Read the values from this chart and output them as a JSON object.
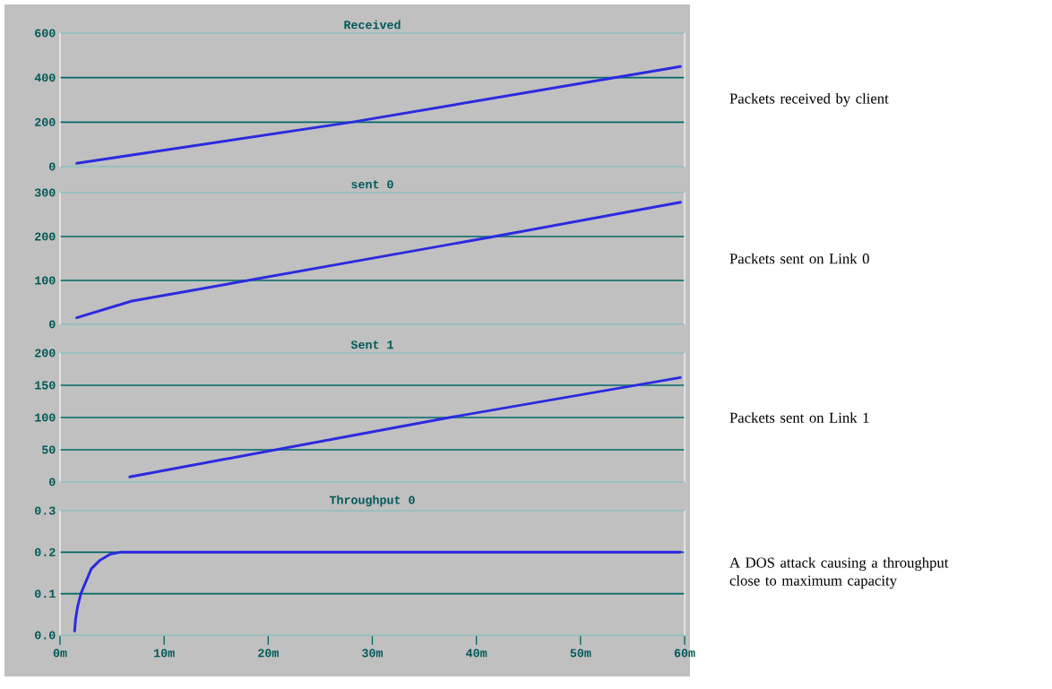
{
  "chart_data": [
    {
      "type": "line",
      "title": "Received",
      "x": [
        1.6,
        28,
        59.6
      ],
      "values": [
        15,
        200,
        450
      ],
      "color": "#2a2ae0",
      "xlim": [
        0,
        60
      ],
      "ylim": [
        0,
        600
      ],
      "yticks": [
        0,
        200,
        400,
        600
      ],
      "grid": "y",
      "tick_labels": "y",
      "annotations": [
        "Packets received by client"
      ]
    },
    {
      "type": "line",
      "title": "sent 0",
      "x": [
        1.6,
        6.9,
        41.7,
        59.6
      ],
      "values": [
        15,
        53,
        200,
        278
      ],
      "color": "#2a2ae0",
      "xlim": [
        0,
        60
      ],
      "ylim": [
        0,
        300
      ],
      "yticks": [
        0,
        100,
        200,
        300
      ],
      "grid": "y",
      "tick_labels": "y",
      "annotations": [
        "Packets sent on Link 0"
      ]
    },
    {
      "type": "line",
      "title": "Sent 1",
      "x": [
        6.7,
        37.4,
        59.6
      ],
      "values": [
        8,
        100,
        162
      ],
      "color": "#2a2ae0",
      "xlim": [
        0,
        60
      ],
      "ylim": [
        0,
        200
      ],
      "yticks": [
        0,
        50,
        100,
        150,
        200
      ],
      "grid": "y",
      "tick_labels": "y",
      "annotations": [
        "Packets sent on Link 1"
      ]
    },
    {
      "type": "line",
      "title": "Throughput 0",
      "x": [
        1.4,
        1.5,
        1.7,
        2.0,
        2.5,
        3.0,
        3.8,
        4.8,
        5.8,
        59.6
      ],
      "values": [
        0.01,
        0.04,
        0.07,
        0.1,
        0.13,
        0.16,
        0.18,
        0.195,
        0.2,
        0.2
      ],
      "color": "#2a2ae0",
      "xlim": [
        0,
        60
      ],
      "ylim": [
        0,
        0.3
      ],
      "yticks": [
        {
          "value": 0,
          "label": "0.0"
        },
        0.1,
        0.2,
        0.3
      ],
      "xticks": [
        {
          "value": 0,
          "label": "0m"
        },
        {
          "value": 10,
          "label": "10m"
        },
        {
          "value": 20,
          "label": "20m"
        },
        {
          "value": 30,
          "label": "30m"
        },
        {
          "value": 40,
          "label": "40m"
        },
        {
          "value": 50,
          "label": "50m"
        },
        {
          "value": 60,
          "label": "60m"
        }
      ],
      "grid": "y",
      "annotations": [
        "A DOS attack causing a throughput close to maximum capacity"
      ]
    }
  ]
}
